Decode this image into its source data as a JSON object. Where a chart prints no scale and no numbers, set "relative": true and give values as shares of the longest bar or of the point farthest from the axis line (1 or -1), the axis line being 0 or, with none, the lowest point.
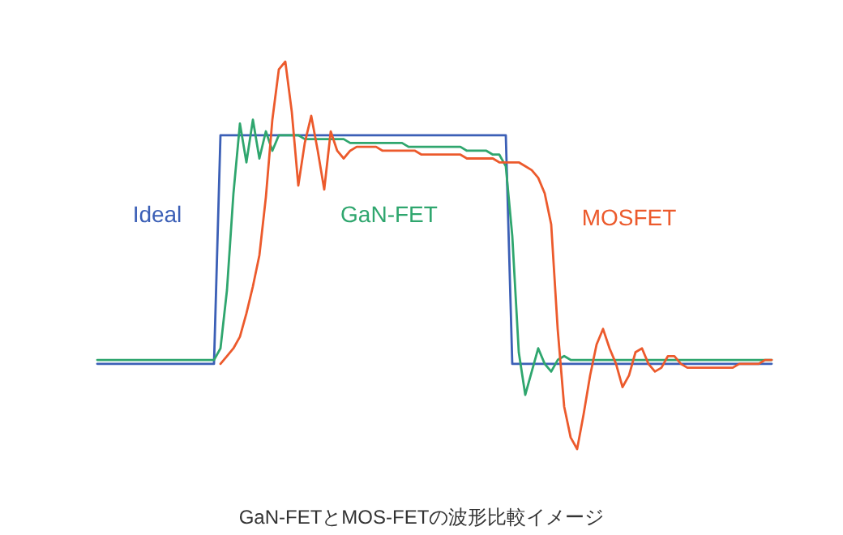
{
  "chart_data": {
    "type": "line",
    "relative": true,
    "annotations": [
      "GaN-FETとMOS-FETの波形比較イメージ"
    ],
    "categories": [
      null,
      null,
      null,
      null,
      null,
      null,
      null,
      null,
      null,
      null,
      null,
      null,
      null,
      null,
      null,
      null,
      null,
      null,
      null,
      null,
      null,
      null,
      null,
      null,
      null,
      null,
      null,
      null,
      null,
      null,
      null,
      null,
      null,
      null,
      null,
      null,
      null,
      null,
      null,
      null,
      null,
      null,
      null,
      null,
      null,
      null,
      null,
      null,
      null,
      null,
      null,
      null,
      null,
      null,
      null,
      null,
      null,
      null,
      null,
      null,
      null,
      null,
      null,
      null,
      null,
      null,
      null,
      null,
      null,
      null,
      null,
      null,
      null,
      null,
      null,
      null,
      null,
      null,
      null,
      null,
      null,
      null,
      null,
      null,
      null,
      null,
      null,
      null,
      null,
      null,
      null,
      null,
      null,
      null,
      null,
      null,
      null,
      null,
      null,
      null,
      null,
      null,
      null,
      null,
      null
    ],
    "series": [
      {
        "name": "Ideal",
        "color": "#3b5fb6",
        "values": [
          0.22,
          0.22,
          0.22,
          0.22,
          0.22,
          0.22,
          0.22,
          0.22,
          0.22,
          0.22,
          0.22,
          0.22,
          0.22,
          0.22,
          0.22,
          0.22,
          0.22,
          0.22,
          0.22,
          0.81,
          0.81,
          0.81,
          0.81,
          0.81,
          0.81,
          0.81,
          0.81,
          0.81,
          0.81,
          0.81,
          0.81,
          0.81,
          0.81,
          0.81,
          0.81,
          0.81,
          0.81,
          0.81,
          0.81,
          0.81,
          0.81,
          0.81,
          0.81,
          0.81,
          0.81,
          0.81,
          0.81,
          0.81,
          0.81,
          0.81,
          0.81,
          0.81,
          0.81,
          0.81,
          0.81,
          0.81,
          0.81,
          0.81,
          0.81,
          0.81,
          0.81,
          0.81,
          0.81,
          0.81,
          0.22,
          0.22,
          0.22,
          0.22,
          0.22,
          0.22,
          0.22,
          0.22,
          0.22,
          0.22,
          0.22,
          0.22,
          0.22,
          0.22,
          0.22,
          0.22,
          0.22,
          0.22,
          0.22,
          0.22,
          0.22,
          0.22,
          0.22,
          0.22,
          0.22,
          0.22,
          0.22,
          0.22,
          0.22,
          0.22,
          0.22,
          0.22,
          0.22,
          0.22,
          0.22,
          0.22,
          0.22,
          0.22,
          0.22,
          0.22,
          0.22
        ]
      },
      {
        "name": "GaN-FET",
        "color": "#2fa66e",
        "values": [
          0.23,
          0.23,
          0.23,
          0.23,
          0.23,
          0.23,
          0.23,
          0.23,
          0.23,
          0.23,
          0.23,
          0.23,
          0.23,
          0.23,
          0.23,
          0.23,
          0.23,
          0.23,
          0.23,
          0.26,
          0.41,
          0.66,
          0.84,
          0.74,
          0.85,
          0.75,
          0.82,
          0.77,
          0.81,
          0.81,
          0.81,
          0.81,
          0.8,
          0.8,
          0.8,
          0.8,
          0.8,
          0.8,
          0.8,
          0.79,
          0.79,
          0.79,
          0.79,
          0.79,
          0.79,
          0.79,
          0.79,
          0.79,
          0.78,
          0.78,
          0.78,
          0.78,
          0.78,
          0.78,
          0.78,
          0.78,
          0.78,
          0.77,
          0.77,
          0.77,
          0.77,
          0.76,
          0.76,
          0.73,
          0.55,
          0.25,
          0.14,
          0.2,
          0.26,
          0.22,
          0.2,
          0.23,
          0.24,
          0.23,
          0.23,
          0.23,
          0.23,
          0.23,
          0.23,
          0.23,
          0.23,
          0.23,
          0.23,
          0.23,
          0.23,
          0.23,
          0.23,
          0.23,
          0.23,
          0.23,
          0.23,
          0.23,
          0.23,
          0.23,
          0.23,
          0.23,
          0.23,
          0.23,
          0.23,
          0.23,
          0.23,
          0.23,
          0.23,
          0.23,
          0.23
        ]
      },
      {
        "name": "MOSFET",
        "color": "#ec5a2c",
        "values": [
          null,
          null,
          null,
          null,
          null,
          null,
          null,
          null,
          null,
          null,
          null,
          null,
          null,
          null,
          null,
          null,
          null,
          null,
          null,
          0.22,
          0.24,
          0.26,
          0.29,
          0.35,
          0.42,
          0.5,
          0.65,
          0.85,
          0.98,
          1,
          0.87,
          0.68,
          0.79,
          0.86,
          0.77,
          0.67,
          0.82,
          0.77,
          0.75,
          0.77,
          0.78,
          0.78,
          0.78,
          0.78,
          0.77,
          0.77,
          0.77,
          0.77,
          0.77,
          0.77,
          0.76,
          0.76,
          0.76,
          0.76,
          0.76,
          0.76,
          0.76,
          0.75,
          0.75,
          0.75,
          0.75,
          0.75,
          0.74,
          0.74,
          0.74,
          0.74,
          0.73,
          0.72,
          0.7,
          0.66,
          0.58,
          0.31,
          0.11,
          0.03,
          0,
          0.09,
          0.19,
          0.27,
          0.31,
          0.26,
          0.22,
          0.16,
          0.19,
          0.25,
          0.26,
          0.22,
          0.2,
          0.21,
          0.24,
          0.24,
          0.22,
          0.21,
          0.21,
          0.21,
          0.21,
          0.21,
          0.21,
          0.21,
          0.21,
          0.22,
          0.22,
          0.22,
          0.22,
          0.23,
          0.23
        ]
      }
    ]
  }
}
